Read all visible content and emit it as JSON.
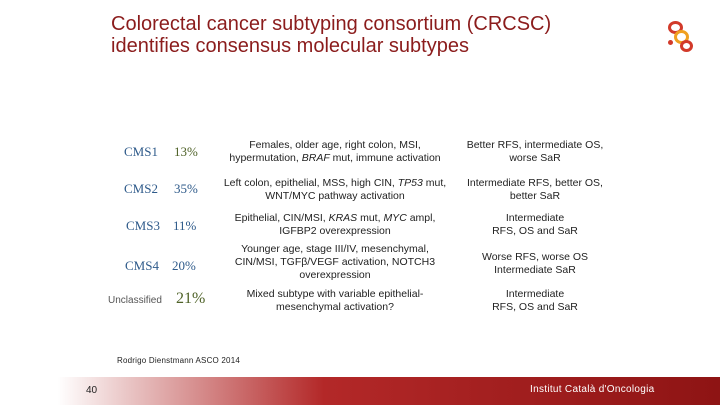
{
  "slide": {
    "title": "Colorectal cancer subtyping consortium (CRCSC) identifies consensus molecular subtypes",
    "citation": "Rodrigo Dienstmann ASCO 2014",
    "page_number": "40",
    "institution": "Institut Català d'Oncologia",
    "colors": {
      "title": "#8b1c1c",
      "subtype_label": "#2e5a8a",
      "footer_accent": "#b32828"
    }
  },
  "subtypes": [
    {
      "label": "CMS1",
      "percent": "13%",
      "percent_color": "#4f6228",
      "features": [
        "Females, older age, right colon, MSI,",
        "hypermutation, BRAF mut, immune activation"
      ],
      "outcome": [
        "Better RFS, intermediate OS,",
        "worse SaR"
      ]
    },
    {
      "label": "CMS2",
      "percent": "35%",
      "percent_color": "#2e5a8a",
      "features": [
        "Left colon, epithelial, MSS, high CIN, TP53 mut,",
        "WNT/MYC pathway activation"
      ],
      "outcome": [
        "Intermediate RFS, better OS,",
        "better SaR"
      ]
    },
    {
      "label": "CMS3",
      "percent": "11%",
      "percent_color": "#2e5a8a",
      "features": [
        "Epithelial, CIN/MSI, KRAS mut, MYC ampl,",
        "IGFBP2 overexpression"
      ],
      "outcome": [
        "Intermediate",
        "RFS, OS and SaR"
      ]
    },
    {
      "label": "CMS4",
      "percent": "20%",
      "percent_color": "#2e5a8a",
      "features": [
        "Younger age, stage III/IV, mesenchymal,",
        "CIN/MSI, TGFβ/VEGF activation, NOTCH3",
        "overexpression"
      ],
      "outcome": [
        "Worse RFS, worse OS",
        "Intermediate SaR"
      ]
    },
    {
      "label": "Unclassified",
      "percent": "21%",
      "percent_color": "#4f6228",
      "features": [
        "Mixed subtype with variable epithelial-",
        "mesenchymal activation?"
      ],
      "outcome": [
        "Intermediate",
        "RFS, OS and SaR"
      ]
    }
  ],
  "icons": {
    "logo": "ico-logo-dots"
  }
}
